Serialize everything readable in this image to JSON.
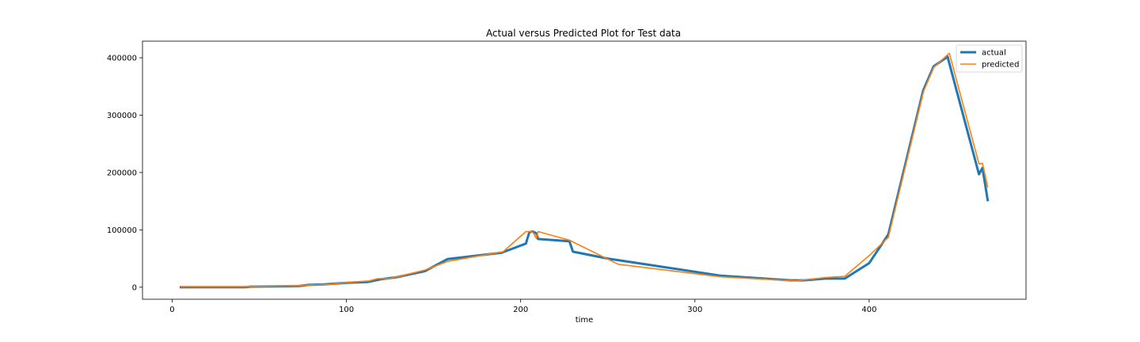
{
  "chart_data": {
    "type": "line",
    "title": "Actual versus Predicted Plot for Test data",
    "xlabel": "time",
    "ylabel": "",
    "xlim": [
      -17,
      490
    ],
    "ylim": [
      -21000,
      429000
    ],
    "xticks": [
      0,
      100,
      200,
      300,
      400
    ],
    "yticks": [
      0,
      100000,
      200000,
      300000,
      400000
    ],
    "xtick_labels": [
      "0",
      "100",
      "200",
      "300",
      "400"
    ],
    "ytick_labels": [
      "0",
      "100000",
      "200000",
      "300000",
      "400000"
    ],
    "grid": false,
    "legend_position": "top-right",
    "colors": {
      "actual": "#1f77b4",
      "predicted": "#ff7f0e"
    },
    "series": [
      {
        "name": "actual",
        "x": [
          5,
          42,
          45,
          73,
          78,
          87,
          102,
          112,
          120,
          128,
          145,
          158,
          189,
          203,
          205,
          207,
          209,
          210,
          228,
          230,
          250,
          315,
          355,
          362,
          375,
          386,
          400,
          411,
          431,
          437,
          445,
          463,
          465,
          468
        ],
        "y": [
          0,
          0,
          1000,
          2000,
          4000,
          5000,
          8000,
          9000,
          14000,
          17000,
          28000,
          49000,
          60000,
          76000,
          96000,
          97000,
          94000,
          84000,
          80000,
          62000,
          50000,
          20000,
          12000,
          12000,
          15000,
          15000,
          42000,
          92000,
          343000,
          385000,
          402000,
          197000,
          208000,
          152000
        ]
      },
      {
        "name": "predicted",
        "x": [
          5,
          42,
          45,
          75,
          80,
          90,
          103,
          113,
          118,
          125,
          145,
          158,
          190,
          203,
          205,
          207,
          209,
          210,
          228,
          256,
          315,
          358,
          375,
          386,
          400,
          411,
          431,
          437,
          446,
          463,
          465,
          468
        ],
        "y": [
          1000,
          1000,
          1000,
          3000,
          4000,
          5000,
          9000,
          11000,
          15000,
          15000,
          30000,
          45000,
          62000,
          97000,
          97000,
          96000,
          85000,
          97000,
          82000,
          40000,
          18000,
          11000,
          17000,
          19000,
          55000,
          87000,
          340000,
          383000,
          408000,
          215000,
          216000,
          175000
        ]
      }
    ]
  }
}
